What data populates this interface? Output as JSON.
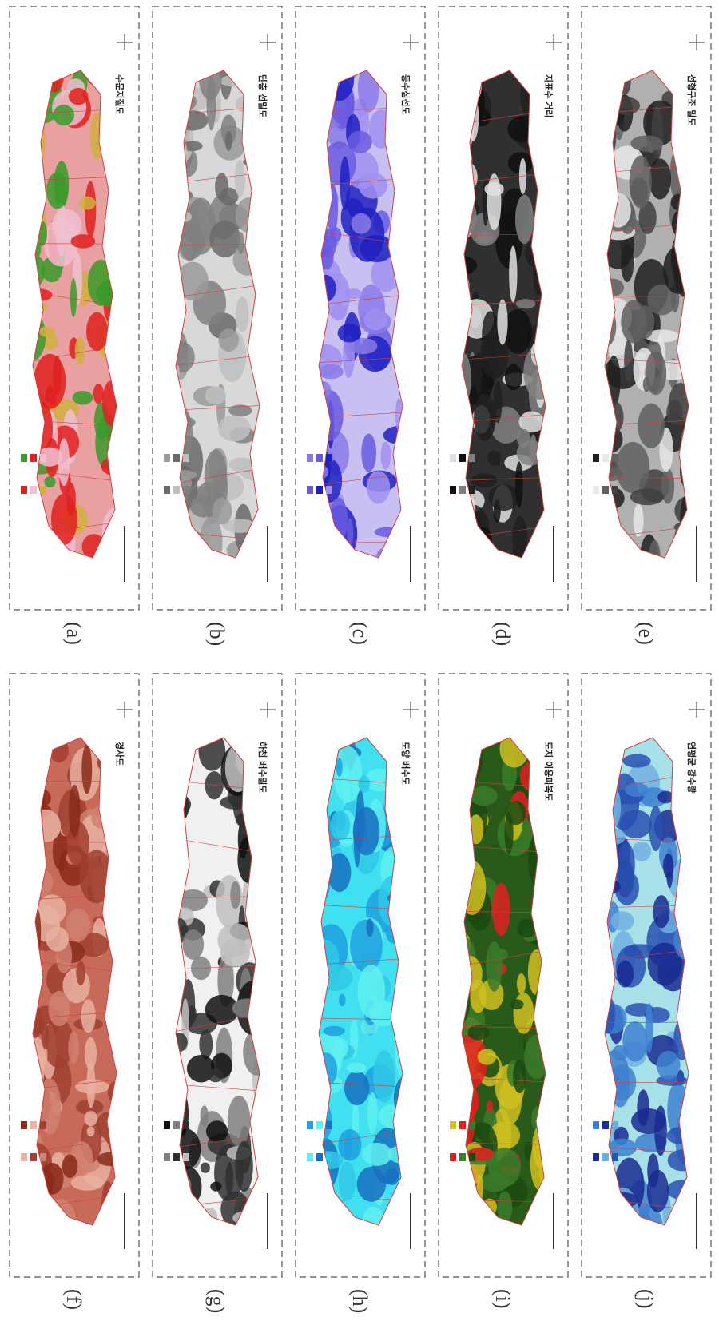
{
  "panels": [
    {
      "label": "(a)",
      "title": "수문지질도"
    },
    {
      "label": "(b)",
      "title": "단층 선밀도"
    },
    {
      "label": "(c)",
      "title": "등수심선도"
    },
    {
      "label": "(d)",
      "title": "지표수 거리"
    },
    {
      "label": "(e)",
      "title": "선형구조 밀도"
    },
    {
      "label": "(f)",
      "title": "경사도"
    },
    {
      "label": "(g)",
      "title": "하천 배수밀도"
    },
    {
      "label": "(h)",
      "title": "토양 배수도"
    },
    {
      "label": "(i)",
      "title": "토지 이용피복도"
    },
    {
      "label": "(j)",
      "title": "연평균 강수량"
    }
  ]
}
